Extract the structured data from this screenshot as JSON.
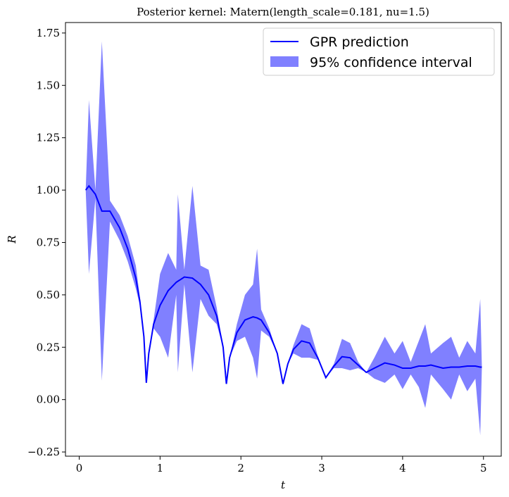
{
  "chart_data": {
    "type": "line",
    "title": "Posterior kernel: Matern(length_scale=0.181, nu=1.5)",
    "x_label": "t",
    "y_label": "R",
    "x": [
      0.08,
      0.12,
      0.2,
      0.28,
      0.38,
      0.5,
      0.6,
      0.7,
      0.75,
      0.8,
      0.83,
      0.86,
      0.92,
      1.0,
      1.1,
      1.2,
      1.22,
      1.3,
      1.4,
      1.5,
      1.6,
      1.7,
      1.78,
      1.82,
      1.86,
      1.95,
      2.05,
      2.15,
      2.2,
      2.25,
      2.35,
      2.45,
      2.52,
      2.58,
      2.65,
      2.75,
      2.85,
      2.95,
      3.05,
      3.15,
      3.25,
      3.35,
      3.45,
      3.55,
      3.65,
      3.78,
      3.9,
      4.0,
      4.1,
      4.2,
      4.28,
      4.35,
      4.5,
      4.6,
      4.7,
      4.8,
      4.9,
      4.96,
      4.98
    ],
    "series": [
      {
        "name": "GPR prediction",
        "color": "#0000ff",
        "values": [
          1.0,
          1.02,
          0.98,
          0.9,
          0.9,
          0.82,
          0.72,
          0.58,
          0.47,
          0.3,
          0.08,
          0.22,
          0.36,
          0.45,
          0.52,
          0.56,
          0.565,
          0.585,
          0.58,
          0.55,
          0.5,
          0.4,
          0.25,
          0.075,
          0.2,
          0.32,
          0.38,
          0.395,
          0.39,
          0.38,
          0.32,
          0.22,
          0.075,
          0.17,
          0.24,
          0.28,
          0.27,
          0.2,
          0.105,
          0.16,
          0.205,
          0.2,
          0.165,
          0.13,
          0.15,
          0.175,
          0.165,
          0.15,
          0.15,
          0.16,
          0.16,
          0.165,
          0.15,
          0.155,
          0.155,
          0.16,
          0.16,
          0.155,
          0.155
        ]
      },
      {
        "name": "95% confidence interval",
        "color": "#8080ff",
        "lower": [
          1.0,
          0.6,
          0.96,
          0.09,
          0.85,
          0.76,
          0.66,
          0.53,
          0.45,
          0.3,
          0.08,
          0.22,
          0.34,
          0.3,
          0.2,
          0.5,
          0.13,
          0.55,
          0.13,
          0.48,
          0.4,
          0.36,
          0.25,
          0.075,
          0.2,
          0.28,
          0.3,
          0.2,
          0.1,
          0.33,
          0.3,
          0.22,
          0.075,
          0.17,
          0.22,
          0.2,
          0.2,
          0.19,
          0.105,
          0.15,
          0.15,
          0.14,
          0.15,
          0.13,
          0.1,
          0.08,
          0.12,
          0.05,
          0.12,
          0.06,
          -0.04,
          0.12,
          0.05,
          0.0,
          0.12,
          0.04,
          0.1,
          -0.17,
          0.15
        ],
        "upper": [
          1.0,
          1.43,
          1.0,
          1.71,
          0.95,
          0.88,
          0.78,
          0.64,
          0.49,
          0.3,
          0.08,
          0.22,
          0.38,
          0.6,
          0.7,
          0.62,
          0.98,
          0.62,
          1.02,
          0.64,
          0.62,
          0.44,
          0.25,
          0.075,
          0.2,
          0.36,
          0.5,
          0.55,
          0.72,
          0.43,
          0.34,
          0.22,
          0.075,
          0.17,
          0.26,
          0.36,
          0.34,
          0.21,
          0.105,
          0.17,
          0.29,
          0.27,
          0.18,
          0.13,
          0.2,
          0.3,
          0.22,
          0.28,
          0.18,
          0.28,
          0.36,
          0.22,
          0.27,
          0.3,
          0.2,
          0.28,
          0.22,
          0.48,
          0.16
        ]
      }
    ],
    "xlim": [
      -0.17,
      5.22
    ],
    "ylim": [
      -0.27,
      1.8
    ],
    "xticks": [
      0,
      1,
      2,
      3,
      4,
      5
    ],
    "yticks": [
      {
        "value": -0.25,
        "label": "−0.25"
      },
      {
        "value": 0,
        "label": "0.00"
      },
      {
        "value": 0.25,
        "label": "0.25"
      },
      {
        "value": 0.5,
        "label": "0.50"
      },
      {
        "value": 0.75,
        "label": "0.75"
      },
      {
        "value": 1,
        "label": "1.00"
      },
      {
        "value": 1.25,
        "label": "1.25"
      },
      {
        "value": 1.5,
        "label": "1.50"
      },
      {
        "value": 1.75,
        "label": "1.75"
      }
    ],
    "legend": "upper right"
  }
}
